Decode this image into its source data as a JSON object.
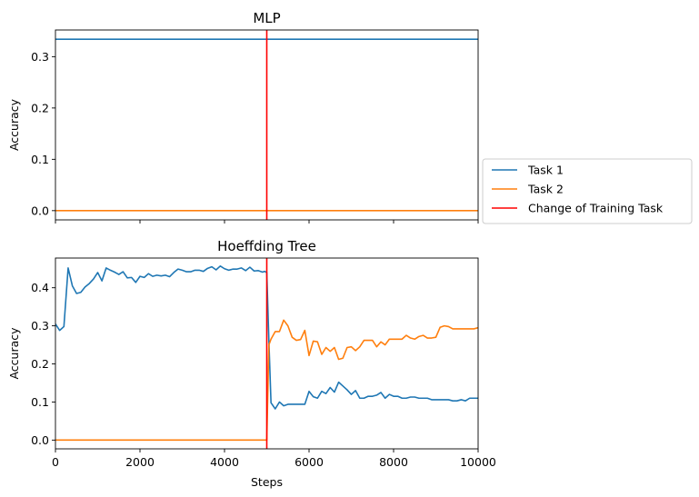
{
  "chart_data": [
    {
      "type": "line",
      "title": "MLP",
      "xlabel": "",
      "ylabel": "Accuracy",
      "xlim": [
        0,
        10000
      ],
      "ylim": [
        -0.018,
        0.352
      ],
      "yticks": [
        0.0,
        0.1,
        0.2,
        0.3
      ],
      "ytick_labels": [
        "0.0",
        "0.1",
        "0.2",
        "0.3"
      ],
      "xticks": [
        0,
        2000,
        4000,
        6000,
        8000,
        10000
      ],
      "show_xtick_labels": false,
      "vline": {
        "x": 5000,
        "color": "#ff0000"
      },
      "series": [
        {
          "name": "Task 1",
          "color": "#1f77b4",
          "x": [
            0,
            10000
          ],
          "y": [
            0.334,
            0.334
          ]
        },
        {
          "name": "Task 2",
          "color": "#ff7f0e",
          "x": [
            0,
            10000
          ],
          "y": [
            0.0,
            0.0
          ]
        }
      ]
    },
    {
      "type": "line",
      "title": "Hoeffding Tree",
      "xlabel": "Steps",
      "ylabel": "Accuracy",
      "xlim": [
        0,
        10000
      ],
      "ylim": [
        -0.023,
        0.478
      ],
      "yticks": [
        0.0,
        0.1,
        0.2,
        0.3,
        0.4
      ],
      "ytick_labels": [
        "0.0",
        "0.1",
        "0.2",
        "0.3",
        "0.4"
      ],
      "xticks": [
        0,
        2000,
        4000,
        6000,
        8000,
        10000
      ],
      "xtick_labels": [
        "0",
        "2000",
        "4000",
        "6000",
        "8000",
        "10000"
      ],
      "show_xtick_labels": true,
      "vline": {
        "x": 5000,
        "color": "#ff0000"
      },
      "series": [
        {
          "name": "Task 1",
          "color": "#1f77b4",
          "x": [
            0,
            100,
            200,
            300,
            400,
            500,
            600,
            700,
            800,
            900,
            1000,
            1100,
            1200,
            1300,
            1400,
            1500,
            1600,
            1700,
            1800,
            1900,
            2000,
            2100,
            2200,
            2300,
            2400,
            2500,
            2600,
            2700,
            2800,
            2900,
            3000,
            3100,
            3200,
            3300,
            3400,
            3500,
            3600,
            3700,
            3800,
            3900,
            4000,
            4100,
            4200,
            4300,
            4400,
            4500,
            4600,
            4700,
            4800,
            4900,
            4950,
            5000,
            5050,
            5100,
            5200,
            5300,
            5400,
            5500,
            5600,
            5700,
            5800,
            5900,
            6000,
            6100,
            6200,
            6300,
            6400,
            6500,
            6600,
            6700,
            6800,
            6900,
            7000,
            7100,
            7200,
            7300,
            7400,
            7500,
            7600,
            7700,
            7800,
            7900,
            8000,
            8100,
            8200,
            8300,
            8400,
            8500,
            8600,
            8700,
            8800,
            8900,
            9000,
            9100,
            9200,
            9300,
            9400,
            9500,
            9600,
            9700,
            9800,
            9900,
            10000
          ],
          "y": [
            0.305,
            0.288,
            0.298,
            0.452,
            0.405,
            0.385,
            0.388,
            0.402,
            0.411,
            0.423,
            0.44,
            0.418,
            0.452,
            0.446,
            0.441,
            0.435,
            0.442,
            0.426,
            0.427,
            0.414,
            0.43,
            0.427,
            0.437,
            0.43,
            0.433,
            0.431,
            0.433,
            0.429,
            0.44,
            0.449,
            0.446,
            0.442,
            0.442,
            0.446,
            0.446,
            0.443,
            0.451,
            0.455,
            0.447,
            0.457,
            0.45,
            0.446,
            0.449,
            0.449,
            0.452,
            0.445,
            0.454,
            0.444,
            0.445,
            0.441,
            0.443,
            0.44,
            0.26,
            0.098,
            0.082,
            0.1,
            0.09,
            0.094,
            0.094,
            0.094,
            0.094,
            0.094,
            0.128,
            0.114,
            0.11,
            0.128,
            0.122,
            0.138,
            0.126,
            0.152,
            0.142,
            0.132,
            0.12,
            0.13,
            0.11,
            0.11,
            0.115,
            0.115,
            0.118,
            0.125,
            0.11,
            0.12,
            0.115,
            0.115,
            0.11,
            0.11,
            0.113,
            0.113,
            0.11,
            0.11,
            0.11,
            0.106,
            0.106,
            0.106,
            0.106,
            0.106,
            0.103,
            0.103,
            0.106,
            0.103,
            0.11,
            0.11,
            0.11
          ]
        },
        {
          "name": "Task 2",
          "color": "#ff7f0e",
          "x": [
            0,
            1000,
            2000,
            3000,
            4000,
            4900,
            4950,
            5000,
            5050,
            5100,
            5200,
            5300,
            5400,
            5500,
            5600,
            5700,
            5800,
            5900,
            6000,
            6100,
            6200,
            6300,
            6400,
            6500,
            6600,
            6700,
            6800,
            6900,
            7000,
            7100,
            7200,
            7300,
            7400,
            7500,
            7600,
            7700,
            7800,
            7900,
            8000,
            8100,
            8200,
            8300,
            8400,
            8500,
            8600,
            8700,
            8800,
            8900,
            9000,
            9100,
            9200,
            9300,
            9400,
            9500,
            9600,
            9700,
            9800,
            9900,
            10000
          ],
          "y": [
            0.0,
            0.0,
            0.0,
            0.0,
            0.0,
            0.0,
            0.0,
            0.0,
            0.25,
            0.265,
            0.285,
            0.285,
            0.315,
            0.3,
            0.27,
            0.262,
            0.264,
            0.288,
            0.222,
            0.26,
            0.258,
            0.225,
            0.243,
            0.233,
            0.243,
            0.212,
            0.215,
            0.243,
            0.245,
            0.235,
            0.245,
            0.262,
            0.262,
            0.262,
            0.245,
            0.258,
            0.25,
            0.265,
            0.265,
            0.265,
            0.265,
            0.275,
            0.268,
            0.265,
            0.272,
            0.275,
            0.268,
            0.268,
            0.27,
            0.296,
            0.3,
            0.298,
            0.292,
            0.292,
            0.292,
            0.292,
            0.292,
            0.292,
            0.295
          ]
        }
      ]
    }
  ],
  "legend": {
    "placement": "outside-right",
    "entries": [
      {
        "label": "Task 1",
        "color": "#1f77b4"
      },
      {
        "label": "Task 2",
        "color": "#ff7f0e"
      },
      {
        "label": "Change of Training Task",
        "color": "#ff0000"
      }
    ]
  }
}
